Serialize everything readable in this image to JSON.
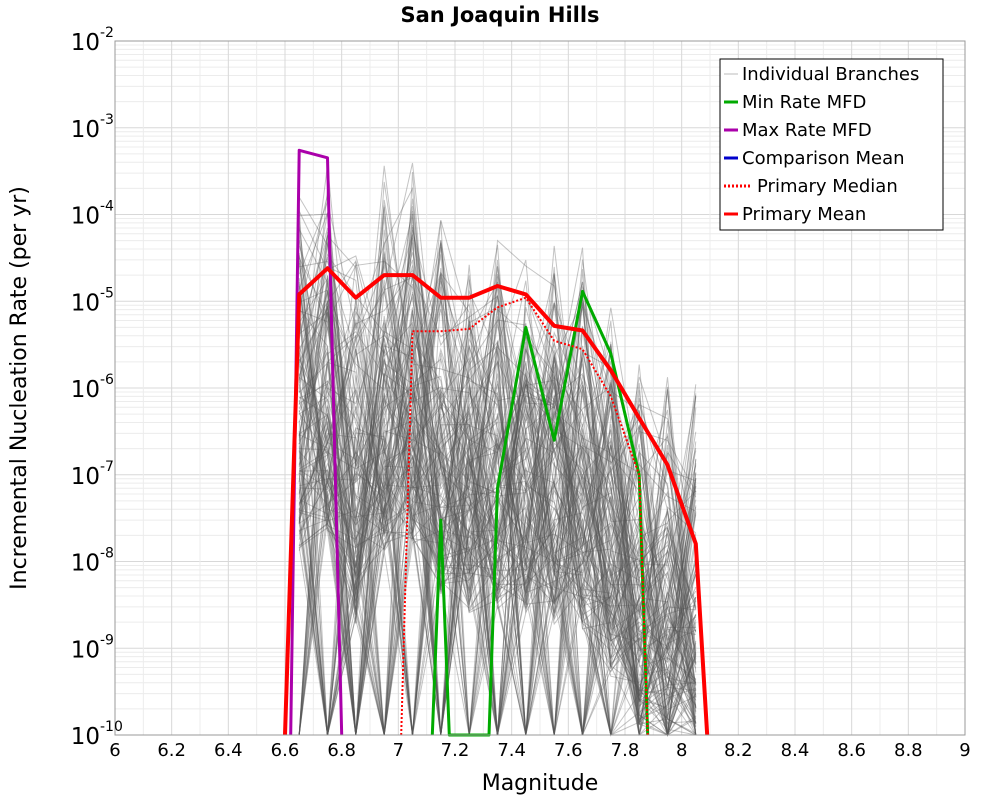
{
  "chart_data": {
    "type": "line",
    "title": "San Joaquin Hills",
    "xlabel": "Magnitude",
    "ylabel": "Incremental Nucleation Rate (per yr)",
    "xlim": [
      6,
      9
    ],
    "ylim": [
      1e-10,
      0.01
    ],
    "y_scale": "log",
    "grid": true,
    "legend_position": "top-right",
    "x_ticks": [
      "6",
      "6.2",
      "6.4",
      "6.6",
      "6.8",
      "7",
      "7.2",
      "7.4",
      "7.6",
      "7.8",
      "8",
      "8.2",
      "8.4",
      "8.6",
      "8.8",
      "9"
    ],
    "y_ticks": [
      {
        "base": "10",
        "exp": "-2"
      },
      {
        "base": "10",
        "exp": "-3"
      },
      {
        "base": "10",
        "exp": "-4"
      },
      {
        "base": "10",
        "exp": "-5"
      },
      {
        "base": "10",
        "exp": "-6"
      },
      {
        "base": "10",
        "exp": "-7"
      },
      {
        "base": "10",
        "exp": "-8"
      },
      {
        "base": "10",
        "exp": "-9"
      },
      {
        "base": "10",
        "exp": "-10"
      }
    ],
    "series": [
      {
        "name": "Individual Branches",
        "color": "#555555",
        "style": "thin",
        "description_values": "band of many branch MFDs",
        "x": [
          6.65,
          6.75,
          6.85,
          6.95,
          7.05,
          7.15,
          7.25,
          7.35,
          7.45,
          7.55,
          7.65,
          7.75,
          7.85,
          7.95,
          8.05
        ],
        "upper": [
          0.0004,
          0.0007,
          6e-05,
          0.0004,
          0.0005,
          0.00013,
          8e-05,
          9e-05,
          8e-05,
          6e-05,
          5e-05,
          1.5e-05,
          4e-06,
          2e-06,
          1.5e-06
        ],
        "lower": [
          1e-10,
          1e-10,
          1e-10,
          1e-10,
          1e-10,
          1e-10,
          1e-10,
          1e-10,
          1e-10,
          1e-10,
          1e-10,
          1e-10,
          1e-10,
          1e-10,
          1e-10
        ]
      },
      {
        "name": "Min Rate MFD",
        "color": "#00aa00",
        "x": [
          7.12,
          7.15,
          7.18,
          7.32,
          7.35,
          7.45,
          7.55,
          7.65,
          7.75,
          7.85,
          7.88
        ],
        "y": [
          1e-10,
          3e-08,
          1e-10,
          1e-10,
          7e-08,
          5e-06,
          2.5e-07,
          1.3e-05,
          2.5e-06,
          1e-07,
          1e-10
        ]
      },
      {
        "name": "Max Rate MFD",
        "color": "#aa00aa",
        "x": [
          6.62,
          6.65,
          6.75,
          6.8
        ],
        "y": [
          1e-10,
          0.00055,
          0.00045,
          1e-10
        ]
      },
      {
        "name": "Comparison Mean",
        "color": "#0000cc",
        "x": [],
        "y": []
      },
      {
        "name": "Primary Median",
        "color": "#ff0000",
        "style": "dotted",
        "x": [
          7.01,
          7.05,
          7.15,
          7.25,
          7.35,
          7.45,
          7.55,
          7.65,
          7.75,
          7.85,
          7.88
        ],
        "y": [
          1e-10,
          4.5e-06,
          4.5e-06,
          4.8e-06,
          8.5e-06,
          1.1e-05,
          3.5e-06,
          2.8e-06,
          8e-07,
          1e-07,
          1e-10
        ]
      },
      {
        "name": "Primary Mean",
        "color": "#ff0000",
        "x": [
          6.6,
          6.65,
          6.75,
          6.85,
          6.95,
          7.05,
          7.15,
          7.25,
          7.35,
          7.45,
          7.55,
          7.65,
          7.75,
          7.85,
          7.95,
          8.05,
          8.09
        ],
        "y": [
          1e-10,
          1.2e-05,
          2.4e-05,
          1.1e-05,
          2e-05,
          2e-05,
          1.1e-05,
          1.1e-05,
          1.5e-05,
          1.2e-05,
          5.2e-06,
          4.6e-06,
          1.6e-06,
          4.5e-07,
          1.3e-07,
          1.6e-08,
          1e-10
        ]
      }
    ]
  }
}
